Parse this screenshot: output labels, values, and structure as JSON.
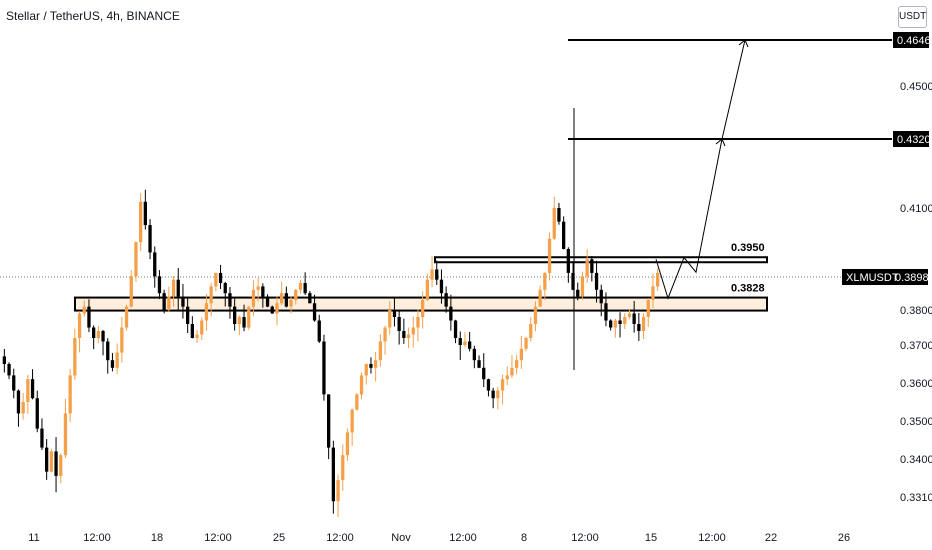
{
  "header": {
    "title": "Stellar / TetherUS, 4h, BINANCE"
  },
  "price_axis": {
    "unit_label": "USDT"
  },
  "chart_data": {
    "type": "candlestick",
    "title": "Stellar / TetherUS, 4h, BINANCE",
    "symbol": "XLMUSDT",
    "current_price": 0.3898,
    "y_ticks": [
      0.45,
      0.41,
      0.38,
      0.37,
      0.36,
      0.35,
      0.34,
      0.331
    ],
    "x_ticks": [
      "11",
      "12:00",
      "18",
      "12:00",
      "25",
      "12:00",
      "Nov",
      "12:00",
      "8",
      "12:00",
      "15",
      "12:00",
      "22",
      "26"
    ],
    "grid": false,
    "levels": [
      {
        "label": "0.3950",
        "value": 0.395
      },
      {
        "label": "0.3828",
        "value": 0.3828
      }
    ],
    "targets": [
      {
        "label": "0.4646",
        "value": 0.4646
      },
      {
        "label": "0.4320",
        "value": 0.432
      }
    ],
    "projection": [
      0.395,
      0.3835,
      0.395,
      0.432,
      0.4646
    ],
    "colors": {
      "up": "#f5a048",
      "down": "#000000",
      "tag": "#000000",
      "band": "#fdeedd"
    },
    "closes": [
      0.365,
      0.362,
      0.358,
      0.352,
      0.355,
      0.361,
      0.356,
      0.348,
      0.343,
      0.337,
      0.342,
      0.336,
      0.341,
      0.352,
      0.362,
      0.372,
      0.379,
      0.381,
      0.375,
      0.372,
      0.374,
      0.371,
      0.366,
      0.364,
      0.368,
      0.375,
      0.381,
      0.39,
      0.4,
      0.412,
      0.405,
      0.397,
      0.39,
      0.385,
      0.38,
      0.384,
      0.389,
      0.384,
      0.381,
      0.376,
      0.372,
      0.373,
      0.377,
      0.382,
      0.387,
      0.391,
      0.388,
      0.385,
      0.381,
      0.376,
      0.378,
      0.375,
      0.381,
      0.386,
      0.387,
      0.384,
      0.381,
      0.379,
      0.382,
      0.385,
      0.381,
      0.383,
      0.386,
      0.388,
      0.385,
      0.382,
      0.377,
      0.371,
      0.357,
      0.343,
      0.33,
      0.335,
      0.341,
      0.347,
      0.353,
      0.357,
      0.362,
      0.365,
      0.364,
      0.366,
      0.371,
      0.375,
      0.38,
      0.378,
      0.374,
      0.372,
      0.373,
      0.375,
      0.378,
      0.383,
      0.389,
      0.392,
      0.389,
      0.385,
      0.381,
      0.377,
      0.372,
      0.37,
      0.371,
      0.369,
      0.366,
      0.364,
      0.361,
      0.358,
      0.356,
      0.358,
      0.361,
      0.362,
      0.364,
      0.366,
      0.369,
      0.372,
      0.376,
      0.381,
      0.386,
      0.391,
      0.401,
      0.41,
      0.406,
      0.398,
      0.391,
      0.386,
      0.384,
      0.39,
      0.395,
      0.391,
      0.386,
      0.382,
      0.377,
      0.375,
      0.377,
      0.376,
      0.378,
      0.379,
      0.376,
      0.374,
      0.378,
      0.383,
      0.387,
      0.391
    ]
  }
}
